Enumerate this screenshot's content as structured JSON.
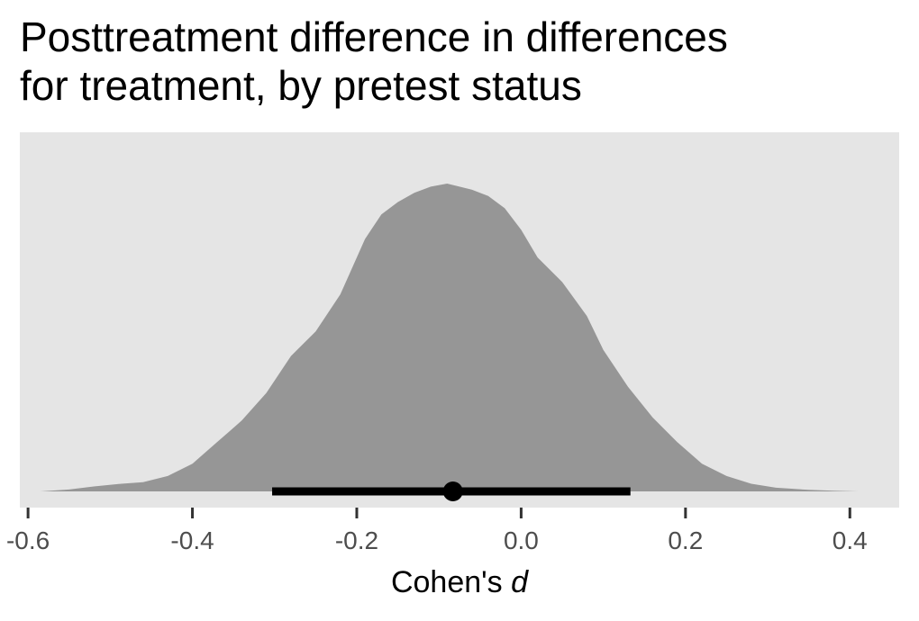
{
  "chart_data": {
    "type": "area",
    "title_lines": [
      "Posttreatment difference in differences",
      "for treatment, by pretest status"
    ],
    "xlabel_prefix": "Cohen's ",
    "xlabel_italic": "d",
    "ylabel": "",
    "xlim": [
      -0.61,
      0.46
    ],
    "ylim": [
      0,
      1.04
    ],
    "x_ticks": [
      -0.6,
      -0.4,
      -0.2,
      0.0,
      0.2,
      0.4
    ],
    "x_tick_labels": [
      "-0.6",
      "-0.4",
      "-0.2",
      "0.0",
      "0.2",
      "0.4"
    ],
    "grid": false,
    "panel_color": "#e5e5e5",
    "density_color": "#969696",
    "interval_color": "#000000",
    "density": {
      "x": [
        -0.585,
        -0.55,
        -0.52,
        -0.49,
        -0.46,
        -0.43,
        -0.4,
        -0.37,
        -0.34,
        -0.31,
        -0.28,
        -0.25,
        -0.22,
        -0.19,
        -0.17,
        -0.15,
        -0.13,
        -0.11,
        -0.09,
        -0.075,
        -0.06,
        -0.04,
        -0.02,
        0.0,
        0.02,
        0.05,
        0.08,
        0.1,
        0.13,
        0.16,
        0.19,
        0.22,
        0.25,
        0.28,
        0.31,
        0.35,
        0.38,
        0.41
      ],
      "y": [
        0.0,
        0.006,
        0.016,
        0.024,
        0.03,
        0.05,
        0.09,
        0.16,
        0.23,
        0.32,
        0.44,
        0.52,
        0.64,
        0.82,
        0.9,
        0.94,
        0.97,
        0.99,
        1.0,
        0.99,
        0.98,
        0.96,
        0.92,
        0.85,
        0.76,
        0.68,
        0.57,
        0.46,
        0.34,
        0.24,
        0.16,
        0.09,
        0.05,
        0.025,
        0.012,
        0.005,
        0.002,
        0.0
      ]
    },
    "point_estimate": -0.083,
    "interval": [
      -0.303,
      0.133
    ]
  }
}
